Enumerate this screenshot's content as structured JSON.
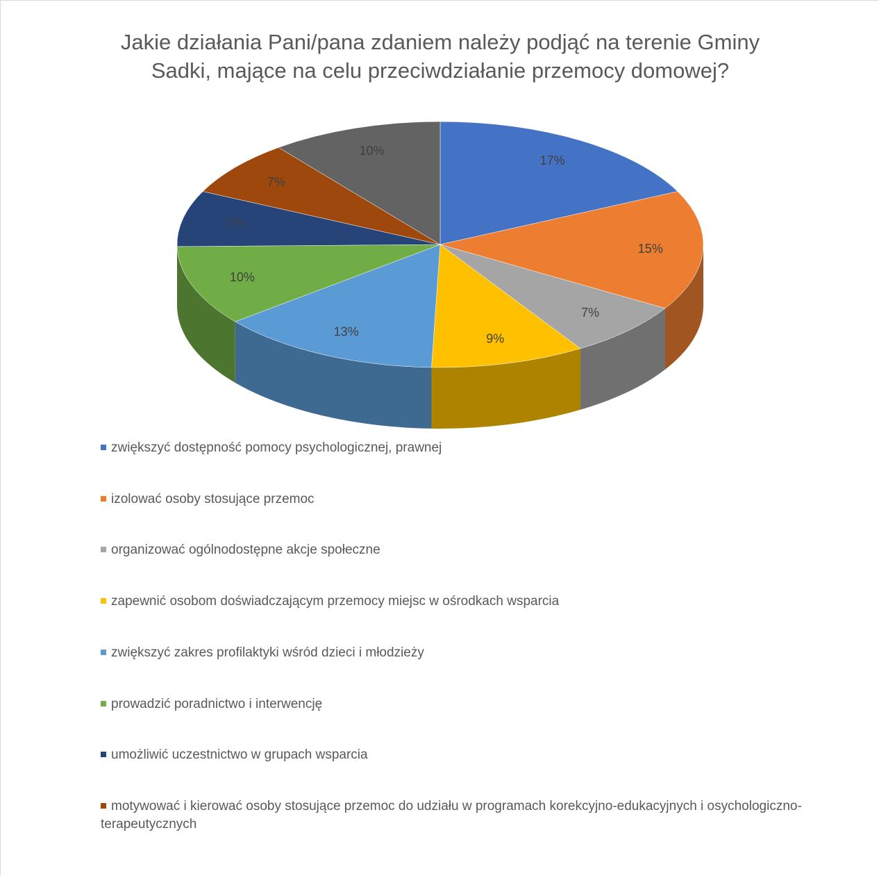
{
  "chart_data": {
    "type": "pie",
    "title": "Jakie działania Pani/pana zdaniem należy podjąć na terenie Gminy Sadki, mające na celu przeciwdziałanie przemocy domowej?",
    "categories": [
      "zwiększyć dostępność pomocy psychologicznej, prawnej",
      "izolować osoby stosujące przemoc",
      "organizować ogólnodostępne akcje społeczne",
      "zapewnić osobom doświadczającym przemocy miejsc w ośrodkach wsparcia",
      "zwiększyć zakres profilaktyki wśród dzieci i młodzieży",
      "prowadzić poradnictwo i interwencję",
      "umożliwić uczestnictwo w grupach wsparcia",
      "motywować i kierować osoby stosujące przemoc do udziału w programach korekcyjno-edukacyjnych i osychologiczno-terapeutycznych",
      null
    ],
    "values": [
      17,
      15,
      7,
      9,
      13,
      10,
      7,
      7,
      10
    ],
    "value_labels": [
      "17%",
      "15%",
      "7%",
      "9%",
      "13%",
      "10%",
      "7%",
      "7%",
      "10%"
    ],
    "colors": [
      "#4472c4",
      "#ed7d31",
      "#a5a5a5",
      "#ffc000",
      "#5b9bd5",
      "#70ad47",
      "#264478",
      "#9e480e",
      "#636363"
    ]
  }
}
